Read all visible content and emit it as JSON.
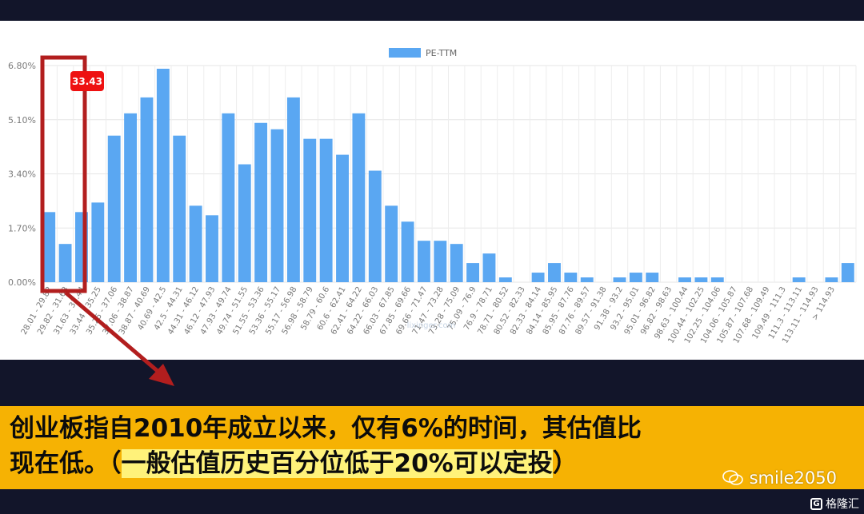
{
  "chart_data": {
    "type": "bar",
    "legend": [
      "PE-TTM"
    ],
    "series": [
      {
        "name": "PE-TTM",
        "values": [
          2.2,
          1.2,
          2.2,
          2.5,
          4.6,
          5.3,
          5.8,
          6.7,
          4.6,
          2.4,
          2.1,
          5.3,
          3.7,
          5.0,
          4.8,
          5.8,
          4.5,
          4.5,
          4.0,
          5.3,
          3.5,
          2.4,
          1.9,
          1.3,
          1.3,
          1.2,
          0.6,
          0.9,
          0.15,
          0,
          0.3,
          0.6,
          0.3,
          0.15,
          0,
          0.15,
          0.3,
          0.3,
          0,
          0.15,
          0.15,
          0.15,
          0,
          0,
          0,
          0,
          0.15,
          0,
          0.15,
          0.6
        ]
      }
    ],
    "categories": [
      "28.01 - 29.82",
      "29.82 - 31.63",
      "31.63 - 33.44",
      "33.44 - 35.25",
      "35.25 - 37.06",
      "37.06 - 38.87",
      "38.87 - 40.69",
      "40.69 - 42.5",
      "42.5 - 44.31",
      "44.31 - 46.12",
      "46.12 - 47.93",
      "47.93 - 49.74",
      "49.74 - 51.55",
      "51.55 - 53.36",
      "53.36 - 55.17",
      "55.17 - 56.98",
      "56.98 - 58.79",
      "58.79 - 60.6",
      "60.6 - 62.41",
      "62.41 - 64.22",
      "64.22 - 66.03",
      "66.03 - 67.85",
      "67.85 - 69.66",
      "69.66 - 71.47",
      "71.47 - 73.28",
      "73.28 - 75.09",
      "75.09 - 76.9",
      "76.9 - 78.71",
      "78.71 - 80.52",
      "80.52 - 82.33",
      "82.33 - 84.14",
      "84.14 - 85.95",
      "85.95 - 87.76",
      "87.76 - 89.57",
      "89.57 - 91.38",
      "91.38 - 93.2",
      "93.2 - 95.01",
      "95.01 - 96.82",
      "96.82 - 98.63",
      "98.63 - 100.44",
      "100.44 - 102.25",
      "102.25 - 104.06",
      "104.06 - 105.87",
      "105.87 - 107.68",
      "107.68 - 109.49",
      "109.49 - 111.3",
      "111.3 - 113.11",
      "113.11 - 114.93",
      "> 114.93",
      ""
    ],
    "y_ticks": [
      "0.00%",
      "1.70%",
      "3.40%",
      "5.10%",
      "6.80%"
    ],
    "ylim": [
      0,
      6.8
    ],
    "grid": true,
    "legend_position": "top-center",
    "bar_color": "#5aa7f2",
    "tooltip_label": "33.43",
    "tooltip_color": "#ee1111",
    "highlight_color": "#b21e1e",
    "watermark": "lixinger.com"
  },
  "caption": {
    "line1": "创业板指自2010年成立以来，仅有6%的时间，其估值比",
    "line2_prefix": "现在低。（",
    "line2_highlight": "一般估值历史百分位低于20%可以定投",
    "line2_suffix": "）"
  },
  "wechat_id": "smile2050",
  "publisher": "格隆汇"
}
